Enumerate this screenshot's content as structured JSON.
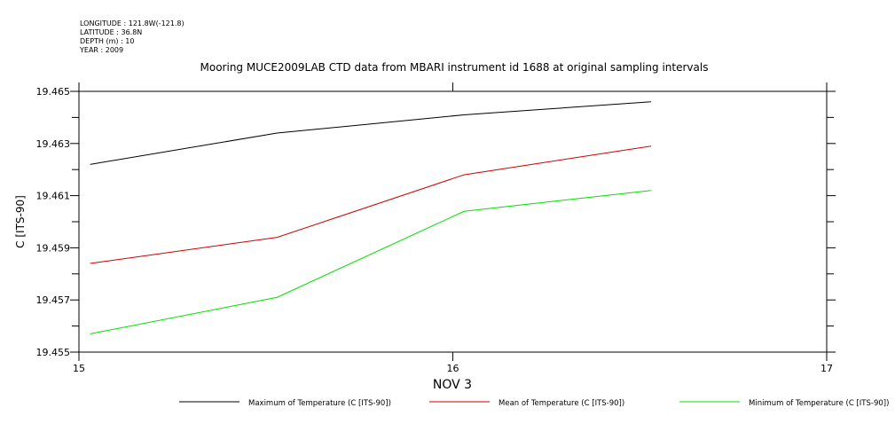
{
  "header": {
    "longitude": "LONGITUDE : 121.8W(-121.8)",
    "latitude": "LATITUDE : 36.8N",
    "depth": "DEPTH (m) : 10",
    "year": "YEAR : 2009"
  },
  "chart_data": {
    "type": "line",
    "title": "Mooring MUCE2009LAB CTD data from MBARI instrument id 1688 at original sampling intervals",
    "xlabel": "NOV 3",
    "ylabel": "C [ITS-90]",
    "xlim": [
      15,
      17
    ],
    "ylim": [
      19.455,
      19.465
    ],
    "x_ticks": [
      "15",
      "16",
      "17"
    ],
    "y_ticks": [
      "19.455",
      "19.457",
      "19.459",
      "19.461",
      "19.463",
      "19.465"
    ],
    "x": [
      15.03,
      15.53,
      16.03,
      16.53
    ],
    "series": [
      {
        "name": "Maximum of Temperature (C [ITS-90])",
        "color": "#000000",
        "values": [
          19.4622,
          19.4634,
          19.4641,
          19.4646
        ]
      },
      {
        "name": "Mean of Temperature (C [ITS-90])",
        "color": "#cc0000",
        "values": [
          19.4584,
          19.4594,
          19.4618,
          19.4629
        ]
      },
      {
        "name": "Minimum of Temperature (C [ITS-90])",
        "color": "#00e000",
        "values": [
          19.4557,
          19.4571,
          19.4604,
          19.4612
        ]
      }
    ],
    "grid": false,
    "legend": "bottom"
  }
}
